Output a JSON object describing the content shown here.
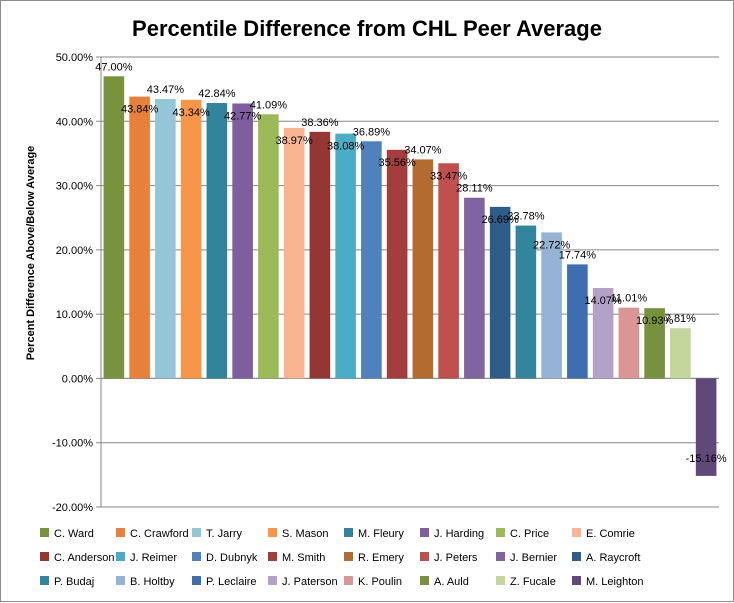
{
  "chart_data": {
    "type": "bar",
    "title": "Percentile Difference from CHL Peer Average",
    "xlabel": "",
    "ylabel": "Percent Difference Above/Below Average",
    "ylim": [
      -20,
      50
    ],
    "y_ticks": [
      "50.00%",
      "40.00%",
      "30.00%",
      "20.00%",
      "10.00%",
      "0.00%",
      "-10.00%",
      "-20.00%"
    ],
    "y_tick_values": [
      50,
      40,
      30,
      20,
      10,
      0,
      -10,
      -20
    ],
    "grid": true,
    "legend_position": "bottom",
    "series": [
      {
        "name": "C. Ward",
        "value": 47.0,
        "label": "47.00%",
        "color": "#77933c"
      },
      {
        "name": "C. Crawford",
        "value": 43.84,
        "label": "43.84%",
        "color": "#e6803b"
      },
      {
        "name": "T. Jarry",
        "value": 43.47,
        "label": "43.47%",
        "color": "#93c6d7"
      },
      {
        "name": "S. Mason",
        "value": 43.34,
        "label": "43.34%",
        "color": "#f79646"
      },
      {
        "name": "M. Fleury",
        "value": 42.84,
        "label": "42.84%",
        "color": "#31849b"
      },
      {
        "name": "J. Harding",
        "value": 42.77,
        "label": "42.77%",
        "color": "#7e5e9e"
      },
      {
        "name": "C. Price",
        "value": 41.09,
        "label": "41.09%",
        "color": "#9bbb59"
      },
      {
        "name": "E. Comrie",
        "value": 38.97,
        "label": "38.97%",
        "color": "#fab490"
      },
      {
        "name": "C. Anderson",
        "value": 38.36,
        "label": "38.36%",
        "color": "#943634"
      },
      {
        "name": "J. Reimer",
        "value": 38.08,
        "label": "38.08%",
        "color": "#4bacc6"
      },
      {
        "name": "D. Dubnyk",
        "value": 36.89,
        "label": "36.89%",
        "color": "#4f81bd"
      },
      {
        "name": "M. Smith",
        "value": 35.56,
        "label": "35.56%",
        "color": "#a23f3c"
      },
      {
        "name": "R. Emery",
        "value": 34.07,
        "label": "34.07%",
        "color": "#b46b30"
      },
      {
        "name": "J. Peters",
        "value": 33.47,
        "label": "33.47%",
        "color": "#c0504d"
      },
      {
        "name": "J. Bernier",
        "value": 28.11,
        "label": "28.11%",
        "color": "#8064a2"
      },
      {
        "name": "A. Raycroft",
        "value": 26.69,
        "label": "26.69%",
        "color": "#2f5d8a"
      },
      {
        "name": "P. Budaj",
        "value": 23.78,
        "label": "23.78%",
        "color": "#31859c"
      },
      {
        "name": "B. Holtby",
        "value": 22.72,
        "label": "22.72%",
        "color": "#95b3d7"
      },
      {
        "name": "P. Leclaire",
        "value": 17.74,
        "label": "17.74%",
        "color": "#3d6eb0"
      },
      {
        "name": "J. Paterson",
        "value": 14.07,
        "label": "14.07%",
        "color": "#b3a2c7"
      },
      {
        "name": "K. Poulin",
        "value": 11.01,
        "label": "11.01%",
        "color": "#d99694"
      },
      {
        "name": "A. Auld",
        "value": 10.93,
        "label": "10.93%",
        "color": "#76923c"
      },
      {
        "name": "Z. Fucale",
        "value": 7.81,
        "label": "7.81%",
        "color": "#c3d69b"
      },
      {
        "name": "M. Leighton",
        "value": -15.16,
        "label": "-15.16%",
        "color": "#5f497a"
      }
    ]
  }
}
